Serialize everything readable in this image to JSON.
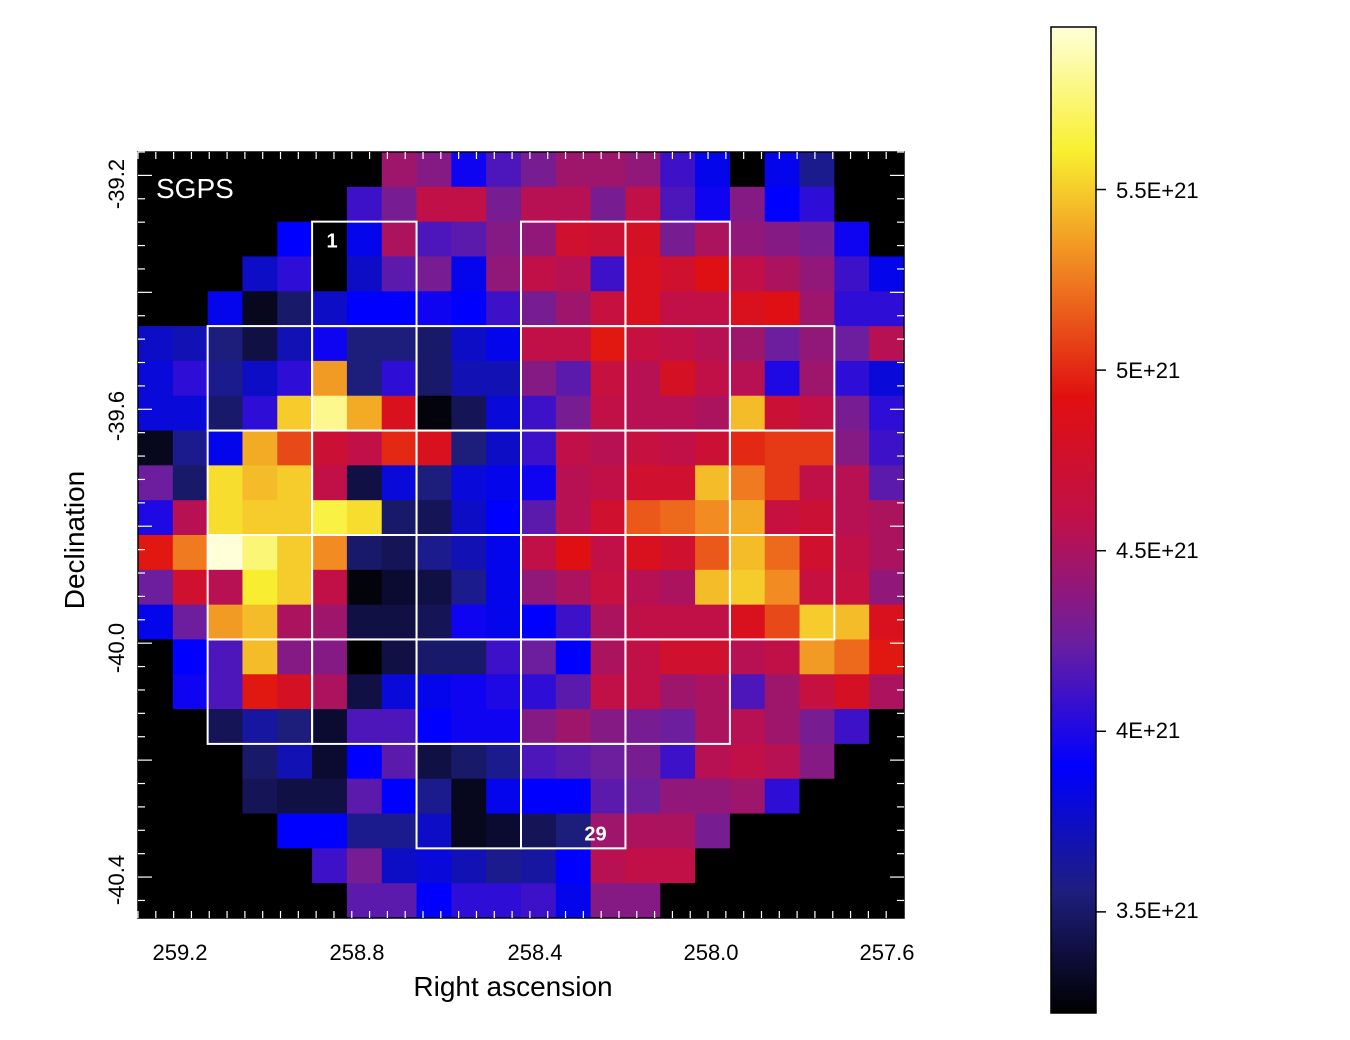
{
  "chart_data": {
    "type": "heatmap",
    "panel_label": "SGPS",
    "xlabel": "Right ascension",
    "ylabel": "Declination",
    "x_ticks": [
      "259.2",
      "258.8",
      "258.4",
      "258.0",
      "257.6"
    ],
    "y_ticks": [
      "-39.2",
      "-39.6",
      "-40.0",
      "-40.4"
    ],
    "x_range_deg": [
      259.3,
      257.58
    ],
    "y_range_deg": [
      -39.16,
      -40.47
    ],
    "colorbar": {
      "ticks": [
        "5.5E+21",
        "5E+21",
        "4.5E+21",
        "4E+21",
        "3.5E+21"
      ],
      "tick_values": [
        5.5e+21,
        5e+21,
        4.5e+21,
        4e+21,
        3.5e+21
      ],
      "range": [
        3.22e+21,
        5.95e+21
      ],
      "colormap": [
        "#000000",
        "#1e1e80",
        "#0000ff",
        "#6a1ea0",
        "#c0104a",
        "#e01010",
        "#f08020",
        "#f8f030",
        "#ffffd8"
      ]
    },
    "grid_rows": 22,
    "grid_cols": 22,
    "masked_color": "#000000",
    "grid_note": "values in units of 1E+21; null = masked (black)",
    "values": [
      [
        null,
        null,
        null,
        null,
        null,
        null,
        null,
        4.45,
        4.35,
        3.95,
        4.15,
        4.3,
        4.45,
        4.45,
        4.4,
        4.1,
        3.85,
        null,
        3.85,
        3.6,
        null,
        null
      ],
      [
        null,
        null,
        null,
        null,
        null,
        null,
        4.1,
        4.3,
        4.6,
        4.6,
        4.3,
        4.55,
        4.55,
        4.3,
        4.6,
        4.15,
        3.95,
        4.35,
        3.9,
        4.05,
        null,
        null
      ],
      [
        null,
        null,
        null,
        null,
        3.9,
        null,
        3.85,
        4.5,
        4.15,
        4.2,
        4.35,
        4.4,
        4.75,
        4.7,
        4.8,
        4.3,
        4.5,
        4.4,
        4.35,
        4.3,
        3.95,
        null
      ],
      [
        null,
        null,
        null,
        3.75,
        4.05,
        null,
        3.75,
        4.2,
        4.3,
        3.85,
        4.4,
        4.6,
        4.55,
        4.1,
        4.85,
        4.75,
        4.9,
        4.6,
        4.5,
        4.4,
        4.1,
        3.85
      ],
      [
        null,
        null,
        3.85,
        3.3,
        3.5,
        3.75,
        3.9,
        3.9,
        3.95,
        3.9,
        4.1,
        4.3,
        4.45,
        4.65,
        4.85,
        4.6,
        4.6,
        4.85,
        4.9,
        4.45,
        4.05,
        4.05
      ],
      [
        3.75,
        3.7,
        3.55,
        3.4,
        3.7,
        3.95,
        3.55,
        3.55,
        3.5,
        3.75,
        3.85,
        4.6,
        4.6,
        4.95,
        4.65,
        4.6,
        4.55,
        4.45,
        4.25,
        4.4,
        4.25,
        4.55
      ],
      [
        3.8,
        4.05,
        3.6,
        3.75,
        4.05,
        5.35,
        3.55,
        4.05,
        3.5,
        3.7,
        3.7,
        4.35,
        4.2,
        4.65,
        4.55,
        4.8,
        4.6,
        4.55,
        4.0,
        4.45,
        4.05,
        3.8
      ],
      [
        3.8,
        3.8,
        3.5,
        4.05,
        5.5,
        5.8,
        5.4,
        4.85,
        3.25,
        3.45,
        3.8,
        4.1,
        4.3,
        4.6,
        4.55,
        4.55,
        4.5,
        5.45,
        4.7,
        4.6,
        4.3,
        4.05
      ],
      [
        3.3,
        3.6,
        3.85,
        5.4,
        5.1,
        4.7,
        4.6,
        5.0,
        4.85,
        3.55,
        3.75,
        4.1,
        4.6,
        4.55,
        4.65,
        4.6,
        4.7,
        5.0,
        5.05,
        5.05,
        4.35,
        4.1
      ],
      [
        4.25,
        3.5,
        5.55,
        5.45,
        5.5,
        4.6,
        3.4,
        3.8,
        3.55,
        3.8,
        3.85,
        3.95,
        4.55,
        4.6,
        4.75,
        4.75,
        5.45,
        5.25,
        5.05,
        4.6,
        4.55,
        4.2
      ],
      [
        4.0,
        4.55,
        5.55,
        5.5,
        5.5,
        5.65,
        5.55,
        3.5,
        3.45,
        3.75,
        3.9,
        4.2,
        4.55,
        4.75,
        5.15,
        5.2,
        5.3,
        5.4,
        4.65,
        4.7,
        4.55,
        4.5
      ],
      [
        4.95,
        5.25,
        5.95,
        5.75,
        5.5,
        5.3,
        3.5,
        3.45,
        3.6,
        3.7,
        3.85,
        4.6,
        4.9,
        4.6,
        4.85,
        4.75,
        5.15,
        5.45,
        5.2,
        4.75,
        4.6,
        4.5
      ],
      [
        4.25,
        4.75,
        4.55,
        5.6,
        5.5,
        4.6,
        3.25,
        3.35,
        3.4,
        3.6,
        3.85,
        4.4,
        4.5,
        4.65,
        4.55,
        4.5,
        5.45,
        5.5,
        5.3,
        4.65,
        4.65,
        4.4
      ],
      [
        3.85,
        4.25,
        5.35,
        5.45,
        4.5,
        4.45,
        3.4,
        3.4,
        3.45,
        3.95,
        3.85,
        3.9,
        4.1,
        4.5,
        4.6,
        4.6,
        4.6,
        4.85,
        5.1,
        5.5,
        5.45,
        4.85
      ],
      [
        null,
        3.9,
        4.15,
        5.45,
        4.35,
        4.35,
        3.22,
        3.4,
        3.5,
        3.5,
        4.1,
        4.25,
        3.9,
        4.5,
        4.6,
        4.75,
        4.75,
        4.55,
        4.6,
        5.35,
        5.2,
        4.95
      ],
      [
        null,
        3.95,
        4.15,
        4.95,
        4.8,
        4.5,
        3.4,
        3.8,
        3.85,
        3.95,
        4.0,
        4.05,
        4.2,
        4.6,
        4.6,
        4.45,
        4.5,
        4.15,
        4.45,
        4.65,
        4.8,
        4.5
      ],
      [
        null,
        null,
        3.45,
        3.65,
        3.55,
        3.35,
        4.15,
        4.15,
        3.9,
        3.95,
        3.95,
        4.35,
        4.45,
        4.35,
        4.3,
        4.25,
        4.5,
        4.55,
        4.45,
        4.3,
        4.1,
        null
      ],
      [
        null,
        null,
        null,
        3.5,
        3.7,
        3.35,
        3.9,
        4.2,
        3.4,
        3.5,
        3.6,
        4.15,
        4.2,
        4.25,
        4.3,
        4.1,
        4.55,
        4.6,
        4.55,
        4.35,
        null,
        null
      ],
      [
        null,
        null,
        null,
        3.45,
        3.4,
        3.4,
        4.2,
        3.9,
        3.6,
        3.3,
        3.85,
        3.9,
        3.9,
        4.2,
        4.25,
        4.4,
        4.4,
        4.45,
        4.05,
        null,
        null,
        null
      ],
      [
        null,
        null,
        null,
        null,
        3.9,
        3.9,
        3.6,
        3.6,
        3.75,
        3.3,
        3.35,
        3.45,
        3.55,
        4.45,
        4.5,
        4.5,
        4.3,
        null,
        null,
        null,
        null,
        null
      ],
      [
        null,
        null,
        null,
        null,
        null,
        4.1,
        4.3,
        3.75,
        3.8,
        3.7,
        3.6,
        3.65,
        3.9,
        4.55,
        4.6,
        4.6,
        null,
        null,
        null,
        null,
        null,
        null
      ],
      [
        null,
        null,
        null,
        null,
        null,
        null,
        4.2,
        4.2,
        3.9,
        4.05,
        4.05,
        4.1,
        3.85,
        4.35,
        4.35,
        null,
        null,
        null,
        null,
        null,
        null,
        null
      ]
    ],
    "region_grid": {
      "note": "white outline boxes on a 3x3-pixel grid, [row, col] of top-left pixel",
      "boxes": [
        [
          2,
          5
        ],
        [
          2,
          11
        ],
        [
          2,
          14
        ],
        [
          5,
          2
        ],
        [
          5,
          5
        ],
        [
          5,
          8
        ],
        [
          5,
          11
        ],
        [
          5,
          14
        ],
        [
          5,
          17
        ],
        [
          8,
          2
        ],
        [
          8,
          5
        ],
        [
          8,
          8
        ],
        [
          8,
          11
        ],
        [
          8,
          14
        ],
        [
          8,
          17
        ],
        [
          11,
          2
        ],
        [
          11,
          5
        ],
        [
          11,
          8
        ],
        [
          11,
          11
        ],
        [
          11,
          14
        ],
        [
          11,
          17
        ],
        [
          14,
          2
        ],
        [
          14,
          5
        ],
        [
          14,
          8
        ],
        [
          14,
          11
        ],
        [
          14,
          14
        ],
        [
          17,
          8
        ],
        [
          17,
          11
        ]
      ]
    },
    "box_labels": [
      {
        "text": "1",
        "box_index": 0
      },
      {
        "text": "29",
        "box_index": 27
      }
    ]
  }
}
